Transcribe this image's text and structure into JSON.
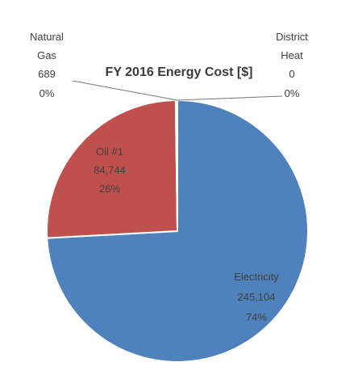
{
  "chart_data": {
    "type": "pie",
    "title": "FY 2016 Energy Cost [$]",
    "slices": [
      {
        "name": "Electricity",
        "value": 245104,
        "value_label": "245,104",
        "percent": "74%",
        "color": "#4f81bd"
      },
      {
        "name": "Oil #1",
        "value": 84744,
        "value_label": "84,744",
        "percent": "26%",
        "color": "#c0504d"
      },
      {
        "name": "Natural Gas",
        "value": 689,
        "value_label": "689",
        "percent": "0%",
        "color": "#9bbb59"
      },
      {
        "name": "District Heat",
        "value": 0,
        "value_label": "0",
        "percent": "0%",
        "color": "#8064a2"
      }
    ],
    "legend": "none"
  }
}
